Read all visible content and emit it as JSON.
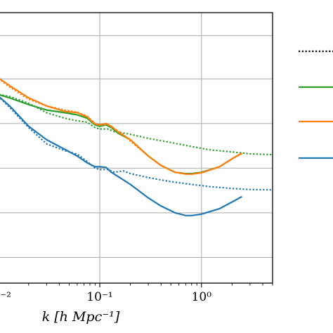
{
  "chart_data": {
    "type": "line",
    "xlabel": "k [h Mpc⁻¹]",
    "xscale": "log",
    "xlim": [
      0.0095,
      5.0
    ],
    "ylim": [
      0,
      1
    ],
    "yscale": "log",
    "grid": true,
    "legend": "right, outside",
    "x_tick_labels": [
      {
        "value": 0.01,
        "label": "10⁻²"
      },
      {
        "value": 0.1,
        "label": "10⁻¹"
      },
      {
        "value": 1,
        "label": "10⁰"
      }
    ],
    "x_gridlines": [
      0.01,
      0.1,
      1
    ],
    "y_gridlines": [
      0.915,
      0.755,
      0.59,
      0.425,
      0.26,
      0.095
    ],
    "colors": {
      "black": "#000000",
      "green": "#2ca02c",
      "orange": "#ff7f0e",
      "blue": "#1f77b4",
      "grid": "#b0b0b0"
    },
    "series": [
      {
        "color": "#000000",
        "style": "dotted",
        "points": []
      },
      {
        "color": "#2ca02c",
        "style": "solid",
        "points": [
          [
            0.0095,
            0.7
          ],
          [
            0.013,
            0.685
          ],
          [
            0.02,
            0.66
          ],
          [
            0.03,
            0.64
          ],
          [
            0.045,
            0.63
          ],
          [
            0.06,
            0.622
          ],
          [
            0.075,
            0.61
          ],
          [
            0.09,
            0.585
          ],
          [
            0.1,
            0.58
          ],
          [
            0.115,
            0.585
          ],
          [
            0.13,
            0.575
          ],
          [
            0.15,
            0.555
          ],
          [
            0.2,
            0.53
          ],
          [
            0.3,
            0.47
          ],
          [
            0.4,
            0.435
          ],
          [
            0.55,
            0.41
          ],
          [
            0.7,
            0.405
          ],
          [
            0.8,
            0.405
          ],
          [
            1.0,
            0.41
          ],
          [
            1.5,
            0.43
          ],
          [
            2.0,
            0.46
          ],
          [
            2.5,
            0.48
          ]
        ]
      },
      {
        "color": "#2ca02c",
        "style": "dotted",
        "points": [
          [
            0.0095,
            0.7
          ],
          [
            0.013,
            0.69
          ],
          [
            0.02,
            0.665
          ],
          [
            0.03,
            0.63
          ],
          [
            0.045,
            0.61
          ],
          [
            0.06,
            0.6
          ],
          [
            0.075,
            0.595
          ],
          [
            0.09,
            0.575
          ],
          [
            0.1,
            0.57
          ],
          [
            0.12,
            0.57
          ],
          [
            0.14,
            0.56
          ],
          [
            0.17,
            0.555
          ],
          [
            0.2,
            0.55
          ],
          [
            0.3,
            0.535
          ],
          [
            0.5,
            0.52
          ],
          [
            0.8,
            0.505
          ],
          [
            1.2,
            0.493
          ],
          [
            2.0,
            0.485
          ],
          [
            3.0,
            0.478
          ],
          [
            5.0,
            0.475
          ]
        ]
      },
      {
        "color": "#ff7f0e",
        "style": "solid",
        "points": [
          [
            0.0095,
            0.765
          ],
          [
            0.013,
            0.73
          ],
          [
            0.02,
            0.685
          ],
          [
            0.03,
            0.655
          ],
          [
            0.045,
            0.635
          ],
          [
            0.06,
            0.63
          ],
          [
            0.075,
            0.615
          ],
          [
            0.09,
            0.588
          ],
          [
            0.1,
            0.585
          ],
          [
            0.115,
            0.59
          ],
          [
            0.13,
            0.58
          ],
          [
            0.15,
            0.56
          ],
          [
            0.2,
            0.53
          ],
          [
            0.3,
            0.47
          ],
          [
            0.4,
            0.435
          ],
          [
            0.55,
            0.41
          ],
          [
            0.7,
            0.403
          ],
          [
            0.8,
            0.403
          ],
          [
            1.0,
            0.408
          ],
          [
            1.5,
            0.43
          ],
          [
            2.0,
            0.46
          ],
          [
            2.5,
            0.48
          ]
        ]
      },
      {
        "color": "#ff7f0e",
        "style": "dotted",
        "points": [
          [
            0.0095,
            0.765
          ],
          [
            0.013,
            0.725
          ],
          [
            0.02,
            0.68
          ],
          [
            0.03,
            0.655
          ],
          [
            0.045,
            0.64
          ],
          [
            0.06,
            0.632
          ],
          [
            0.075,
            0.618
          ],
          [
            0.09,
            0.59
          ],
          [
            0.1,
            0.585
          ],
          [
            0.12,
            0.585
          ],
          [
            0.14,
            0.57
          ],
          [
            0.17,
            0.55
          ],
          [
            0.2,
            0.525
          ],
          [
            0.3,
            0.47
          ],
          [
            0.4,
            0.435
          ],
          [
            0.55,
            0.41
          ],
          [
            0.7,
            0.403
          ],
          [
            0.8,
            0.403
          ],
          [
            1.0,
            0.408
          ],
          [
            1.5,
            0.43
          ],
          [
            2.0,
            0.46
          ],
          [
            2.5,
            0.48
          ]
        ]
      },
      {
        "color": "#1f77b4",
        "style": "solid",
        "points": [
          [
            0.0095,
            0.7
          ],
          [
            0.013,
            0.655
          ],
          [
            0.02,
            0.58
          ],
          [
            0.03,
            0.53
          ],
          [
            0.045,
            0.495
          ],
          [
            0.06,
            0.47
          ],
          [
            0.075,
            0.445
          ],
          [
            0.09,
            0.43
          ],
          [
            0.1,
            0.43
          ],
          [
            0.115,
            0.428
          ],
          [
            0.13,
            0.41
          ],
          [
            0.15,
            0.395
          ],
          [
            0.2,
            0.365
          ],
          [
            0.3,
            0.315
          ],
          [
            0.4,
            0.285
          ],
          [
            0.55,
            0.26
          ],
          [
            0.7,
            0.25
          ],
          [
            0.8,
            0.25
          ],
          [
            1.0,
            0.255
          ],
          [
            1.5,
            0.275
          ],
          [
            2.0,
            0.3
          ],
          [
            2.5,
            0.32
          ]
        ]
      },
      {
        "color": "#1f77b4",
        "style": "dotted",
        "points": [
          [
            0.0095,
            0.7
          ],
          [
            0.013,
            0.65
          ],
          [
            0.02,
            0.575
          ],
          [
            0.03,
            0.515
          ],
          [
            0.045,
            0.49
          ],
          [
            0.06,
            0.477
          ],
          [
            0.075,
            0.45
          ],
          [
            0.09,
            0.425
          ],
          [
            0.1,
            0.42
          ],
          [
            0.12,
            0.42
          ],
          [
            0.14,
            0.41
          ],
          [
            0.17,
            0.415
          ],
          [
            0.2,
            0.405
          ],
          [
            0.3,
            0.39
          ],
          [
            0.5,
            0.375
          ],
          [
            0.8,
            0.365
          ],
          [
            1.2,
            0.357
          ],
          [
            2.0,
            0.35
          ],
          [
            3.0,
            0.346
          ],
          [
            5.0,
            0.345
          ]
        ]
      }
    ]
  },
  "legend": {
    "entries": [
      {
        "color": "#000000",
        "style": "dotted"
      },
      {
        "color": "#2ca02c",
        "style": "solid"
      },
      {
        "color": "#ff7f0e",
        "style": "solid"
      },
      {
        "color": "#1f77b4",
        "style": "solid"
      }
    ]
  }
}
